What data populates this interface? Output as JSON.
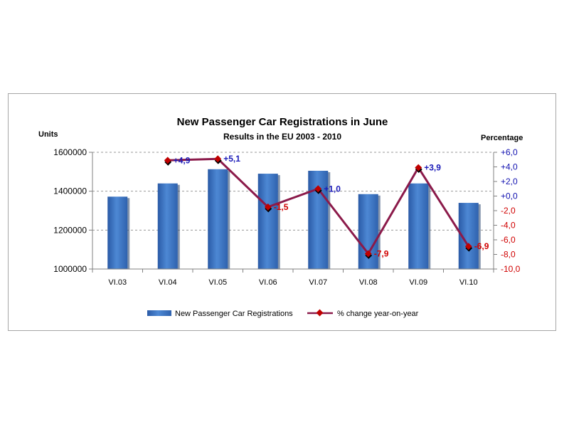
{
  "chart_data": {
    "type": "bar",
    "title": "New Passenger Car Registrations in June",
    "subtitle": "Results in the EU 2003 - 2010",
    "ylabel": "Units",
    "y2label": "Percentage",
    "categories": [
      "VI.03",
      "VI.04",
      "VI.05",
      "VI.06",
      "VI.07",
      "VI.08",
      "VI.09",
      "VI.10"
    ],
    "ylim": [
      1000000,
      1600000
    ],
    "yticks": [
      "1600000",
      "1400000",
      "1200000",
      "1000000"
    ],
    "y2lim": [
      -10,
      6
    ],
    "y2ticks": [
      "+6,0",
      "+4,0",
      "+2,0",
      "+0,0",
      "-2,0",
      "-4,0",
      "-6,0",
      "-8,0",
      "-10,0"
    ],
    "grid": true,
    "legend_position": "bottom",
    "series": [
      {
        "name": "New Passenger Car Registrations",
        "type": "bar",
        "axis": "left",
        "color": "#3a6fb8",
        "values": [
          1372000,
          1440000,
          1513000,
          1490000,
          1505000,
          1385000,
          1440000,
          1340000
        ]
      },
      {
        "name": "% change year-on-year",
        "type": "line",
        "axis": "right",
        "color": "#8b1a4a",
        "marker_color": "#c00000",
        "values": [
          null,
          4.9,
          5.1,
          -1.5,
          1.0,
          -7.9,
          3.9,
          -6.9
        ],
        "labels": [
          "",
          "+4,9",
          "+5,1",
          "-1,5",
          "+1,0",
          "-7,9",
          "+3,9",
          "-6,9"
        ]
      }
    ],
    "label_colors": {
      "positive": "#1a1ab8",
      "negative": "#d00000"
    }
  }
}
